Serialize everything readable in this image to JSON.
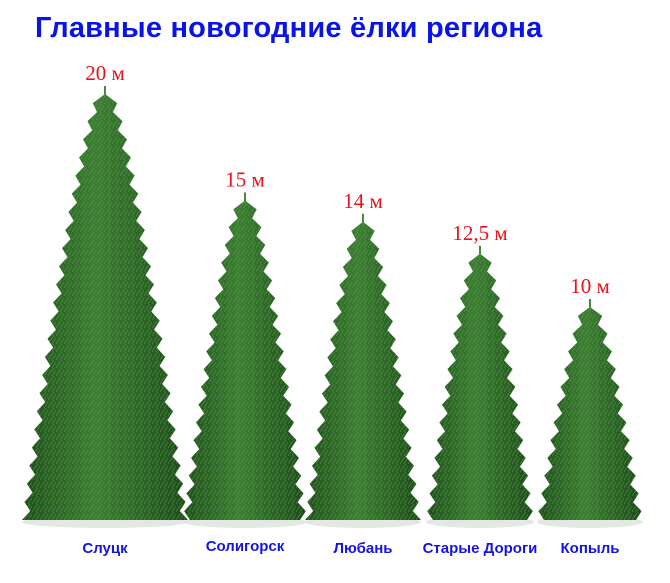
{
  "chart_data": {
    "type": "bar",
    "style": "pictograph-trees",
    "title": "Главные новогодние ёлки региона",
    "categories": [
      "Слуцк",
      "Солигорск",
      "Любань",
      "Старые Дороги",
      "Копыль"
    ],
    "values": [
      20,
      15,
      14,
      12.5,
      10
    ],
    "value_labels": [
      "20 м",
      "15 м",
      "14 м",
      "12,5 м",
      "10 м"
    ],
    "unit": "м",
    "colors": {
      "title": "#0a14e6",
      "value_labels": "#e8121a",
      "category_labels": "#1414e6",
      "tree": "#2f6b2a"
    }
  }
}
